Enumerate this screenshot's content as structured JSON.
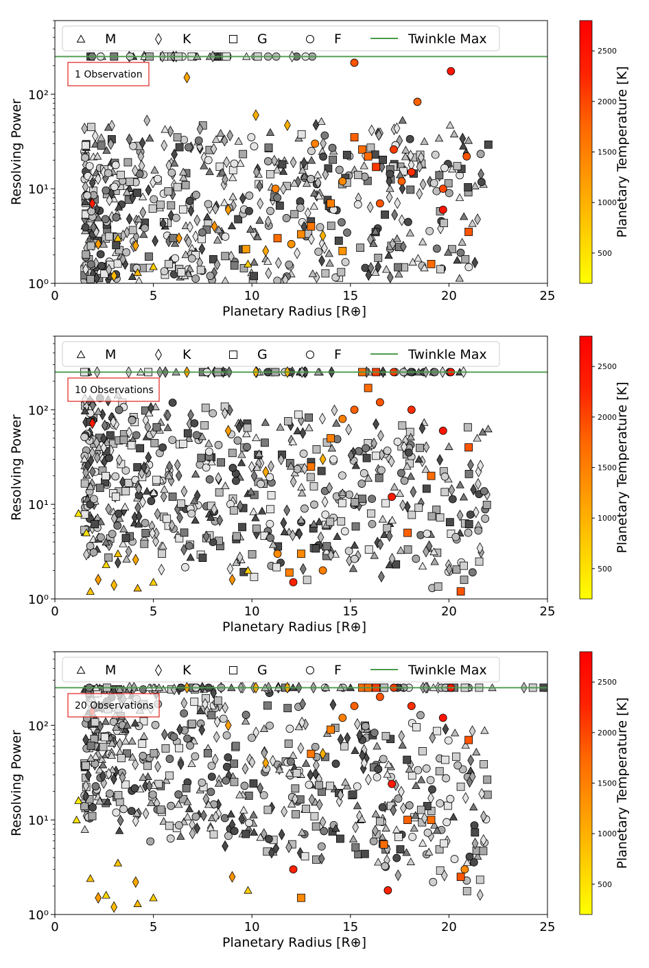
{
  "colors": {
    "twinkle_line": "#4a9a4a",
    "annotation": "#e0201a",
    "colormap": [
      "#ffff00",
      "#ffcc00",
      "#ff9900",
      "#ff6600",
      "#ff2200",
      "#ff0000"
    ]
  },
  "legend_markers": {
    "M": "triangle",
    "K": "diamond",
    "G": "square",
    "F": "circle",
    "Twinkle Max": "line"
  },
  "chart_data": [
    {
      "type": "scatter",
      "annotation": "1 Observation",
      "xlabel": "Planetary Radius [R⊕]",
      "ylabel": "Resolving Power",
      "xlim": [
        0,
        25
      ],
      "ylim": [
        1,
        600
      ],
      "y_scale": "log",
      "x_ticks": [
        "0",
        "5",
        "10",
        "15",
        "20",
        "25"
      ],
      "y_ticks": [
        "10⁰",
        "10¹",
        "10²"
      ],
      "legend": [
        "M",
        "K",
        "G",
        "F",
        "Twinkle Max"
      ],
      "legend_position": "top",
      "twinkle_max": 250,
      "colorbar": {
        "label": "Planetary Temperature [K]",
        "range": [
          200,
          2800
        ],
        "ticks": [
          "500",
          "1000",
          "1500",
          "2000",
          "2500"
        ]
      },
      "series": [
        {
          "name": "F",
          "x": [
            20.1,
            15.2,
            18.4,
            17.2,
            20.9,
            17.6,
            18.1,
            19.7,
            19.7,
            13.2,
            14.6,
            16.5,
            12.0,
            11.2
          ],
          "y": [
            175,
            215,
            83,
            26,
            22,
            12,
            15,
            10,
            6,
            30,
            12,
            7,
            2.6,
            10
          ],
          "temp": [
            2500,
            1900,
            1800,
            2100,
            1900,
            1800,
            2200,
            2000,
            2500,
            1500,
            1400,
            1900,
            1300,
            1500
          ]
        },
        {
          "name": "G",
          "x": [
            15.2,
            15.6,
            15.9,
            16.3,
            14.0,
            13.0,
            9.7,
            19.1,
            21.0,
            11.3,
            12.5,
            14.6
          ],
          "y": [
            35,
            26,
            22,
            17,
            7,
            4,
            2.3,
            1.6,
            3.5,
            3,
            3.3,
            2.2
          ],
          "temp": [
            1800,
            1700,
            1700,
            2100,
            1500,
            1600,
            1200,
            1700,
            1900,
            1700,
            1400,
            1300
          ]
        },
        {
          "name": "K",
          "x": [
            6.7,
            10.2,
            11.8,
            8.8,
            1.9,
            4.1,
            6.3,
            13.6,
            10.7,
            8.1,
            3.0,
            2.2
          ],
          "y": [
            150,
            60,
            47,
            6,
            7,
            2.5,
            3.0,
            3.2,
            2.2,
            4,
            1.2,
            2.6
          ],
          "temp": [
            1100,
            1000,
            1000,
            1200,
            2400,
            1100,
            1200,
            1000,
            1100,
            1300,
            900,
            1200
          ]
        },
        {
          "name": "M",
          "x": [
            3.2,
            5.0,
            9.8,
            4.2
          ],
          "y": [
            3.0,
            1.5,
            1.6,
            1.3
          ],
          "temp": [
            800,
            700,
            700,
            900
          ]
        }
      ]
    },
    {
      "type": "scatter",
      "annotation": "10 Observations",
      "xlabel": "Planetary Radius [R⊕]",
      "ylabel": "Resolving Power",
      "xlim": [
        0,
        25
      ],
      "ylim": [
        1,
        600
      ],
      "y_scale": "log",
      "x_ticks": [
        "0",
        "5",
        "10",
        "15",
        "20",
        "25"
      ],
      "y_ticks": [
        "10⁰",
        "10¹",
        "10²"
      ],
      "legend": [
        "M",
        "K",
        "G",
        "F",
        "Twinkle Max"
      ],
      "legend_position": "top",
      "twinkle_max": 250,
      "colorbar": {
        "label": "Planetary Temperature [K]",
        "range": [
          200,
          2800
        ],
        "ticks": [
          "500",
          "1000",
          "1500",
          "2000",
          "2500"
        ]
      },
      "series": [
        {
          "name": "F",
          "x": [
            20.1,
            17.2,
            19.7,
            18.1,
            16.5,
            15.2,
            14.6,
            12.1,
            11.3,
            17.1,
            13.6
          ],
          "y": [
            250,
            250,
            60,
            100,
            120,
            100,
            80,
            1.5,
            3,
            12,
            2
          ],
          "temp": [
            2500,
            2100,
            2500,
            2200,
            1900,
            1800,
            1500,
            2300,
            1400,
            2400,
            1500
          ]
        },
        {
          "name": "G",
          "x": [
            15.6,
            16.3,
            15.9,
            19.1,
            21.0,
            13.0,
            14.0,
            12.5,
            17.9,
            20.6,
            11.9
          ],
          "y": [
            250,
            250,
            170,
            20,
            40,
            25,
            50,
            3,
            5,
            1.2,
            1.9
          ],
          "temp": [
            1700,
            2100,
            1700,
            1700,
            1900,
            1600,
            1500,
            1400,
            1800,
            1900,
            1500
          ]
        },
        {
          "name": "K",
          "x": [
            1.9,
            6.7,
            10.2,
            11.8,
            8.8,
            13.6,
            10.7,
            3.0,
            2.2,
            4.1,
            9.0
          ],
          "y": [
            72,
            250,
            250,
            250,
            60,
            30,
            22,
            1.4,
            1.6,
            2.6,
            1.6
          ],
          "temp": [
            2400,
            1100,
            1000,
            1000,
            1200,
            1000,
            1100,
            900,
            1200,
            1100,
            1300
          ]
        },
        {
          "name": "M",
          "x": [
            1.2,
            1.6,
            1.8,
            3.2,
            5.0,
            9.8,
            4.2,
            2.6
          ],
          "y": [
            8,
            5,
            1.2,
            3,
            1.5,
            2.0,
            1.3,
            2.3
          ],
          "temp": [
            400,
            500,
            800,
            800,
            700,
            700,
            900,
            600
          ]
        }
      ]
    },
    {
      "type": "scatter",
      "annotation": "20 Observations",
      "xlabel": "Planetary Radius [R⊕]",
      "ylabel": "Resolving Power",
      "xlim": [
        0,
        25
      ],
      "ylim": [
        1,
        600
      ],
      "y_scale": "log",
      "x_ticks": [
        "0",
        "5",
        "10",
        "15",
        "20",
        "25"
      ],
      "y_ticks": [
        "10⁰",
        "10¹",
        "10²"
      ],
      "legend": [
        "M",
        "K",
        "G",
        "F",
        "Twinkle Max"
      ],
      "legend_position": "top",
      "twinkle_max": 250,
      "colorbar": {
        "label": "Planetary Temperature [K]",
        "range": [
          200,
          2800
        ],
        "ticks": [
          "500",
          "1000",
          "1500",
          "2000",
          "2500"
        ]
      },
      "series": [
        {
          "name": "F",
          "x": [
            20.1,
            17.2,
            19.7,
            18.1,
            16.5,
            15.2,
            14.6,
            12.1,
            17.1,
            16.9,
            20.8
          ],
          "y": [
            250,
            250,
            120,
            160,
            200,
            160,
            120,
            3,
            24,
            1.8,
            3
          ],
          "temp": [
            2500,
            2100,
            2500,
            2200,
            1900,
            1800,
            1500,
            2300,
            2400,
            2300,
            1400
          ]
        },
        {
          "name": "G",
          "x": [
            15.6,
            16.3,
            15.9,
            19.1,
            21.0,
            13.0,
            14.0,
            12.5,
            17.9,
            20.6,
            16.7
          ],
          "y": [
            250,
            250,
            250,
            10,
            70,
            50,
            90,
            1.5,
            10,
            2.5,
            5.5
          ],
          "temp": [
            1700,
            2100,
            1700,
            1700,
            1900,
            1600,
            1500,
            1400,
            1800,
            1900,
            1700
          ]
        },
        {
          "name": "K",
          "x": [
            1.9,
            6.7,
            10.2,
            11.8,
            8.8,
            13.6,
            10.7,
            3.0,
            2.2,
            4.1,
            9.0
          ],
          "y": [
            140,
            250,
            250,
            250,
            100,
            50,
            40,
            1.2,
            1.5,
            2.2,
            2.5
          ],
          "temp": [
            2400,
            1100,
            1000,
            1000,
            1200,
            1000,
            1100,
            900,
            1200,
            1100,
            1300
          ]
        },
        {
          "name": "M",
          "x": [
            1.2,
            1.1,
            1.8,
            3.2,
            5.0,
            9.8,
            4.2,
            2.6
          ],
          "y": [
            16,
            10,
            2.4,
            3.5,
            1.5,
            1.8,
            1.3,
            1.6
          ],
          "temp": [
            400,
            500,
            800,
            800,
            700,
            700,
            900,
            600
          ]
        }
      ]
    }
  ]
}
